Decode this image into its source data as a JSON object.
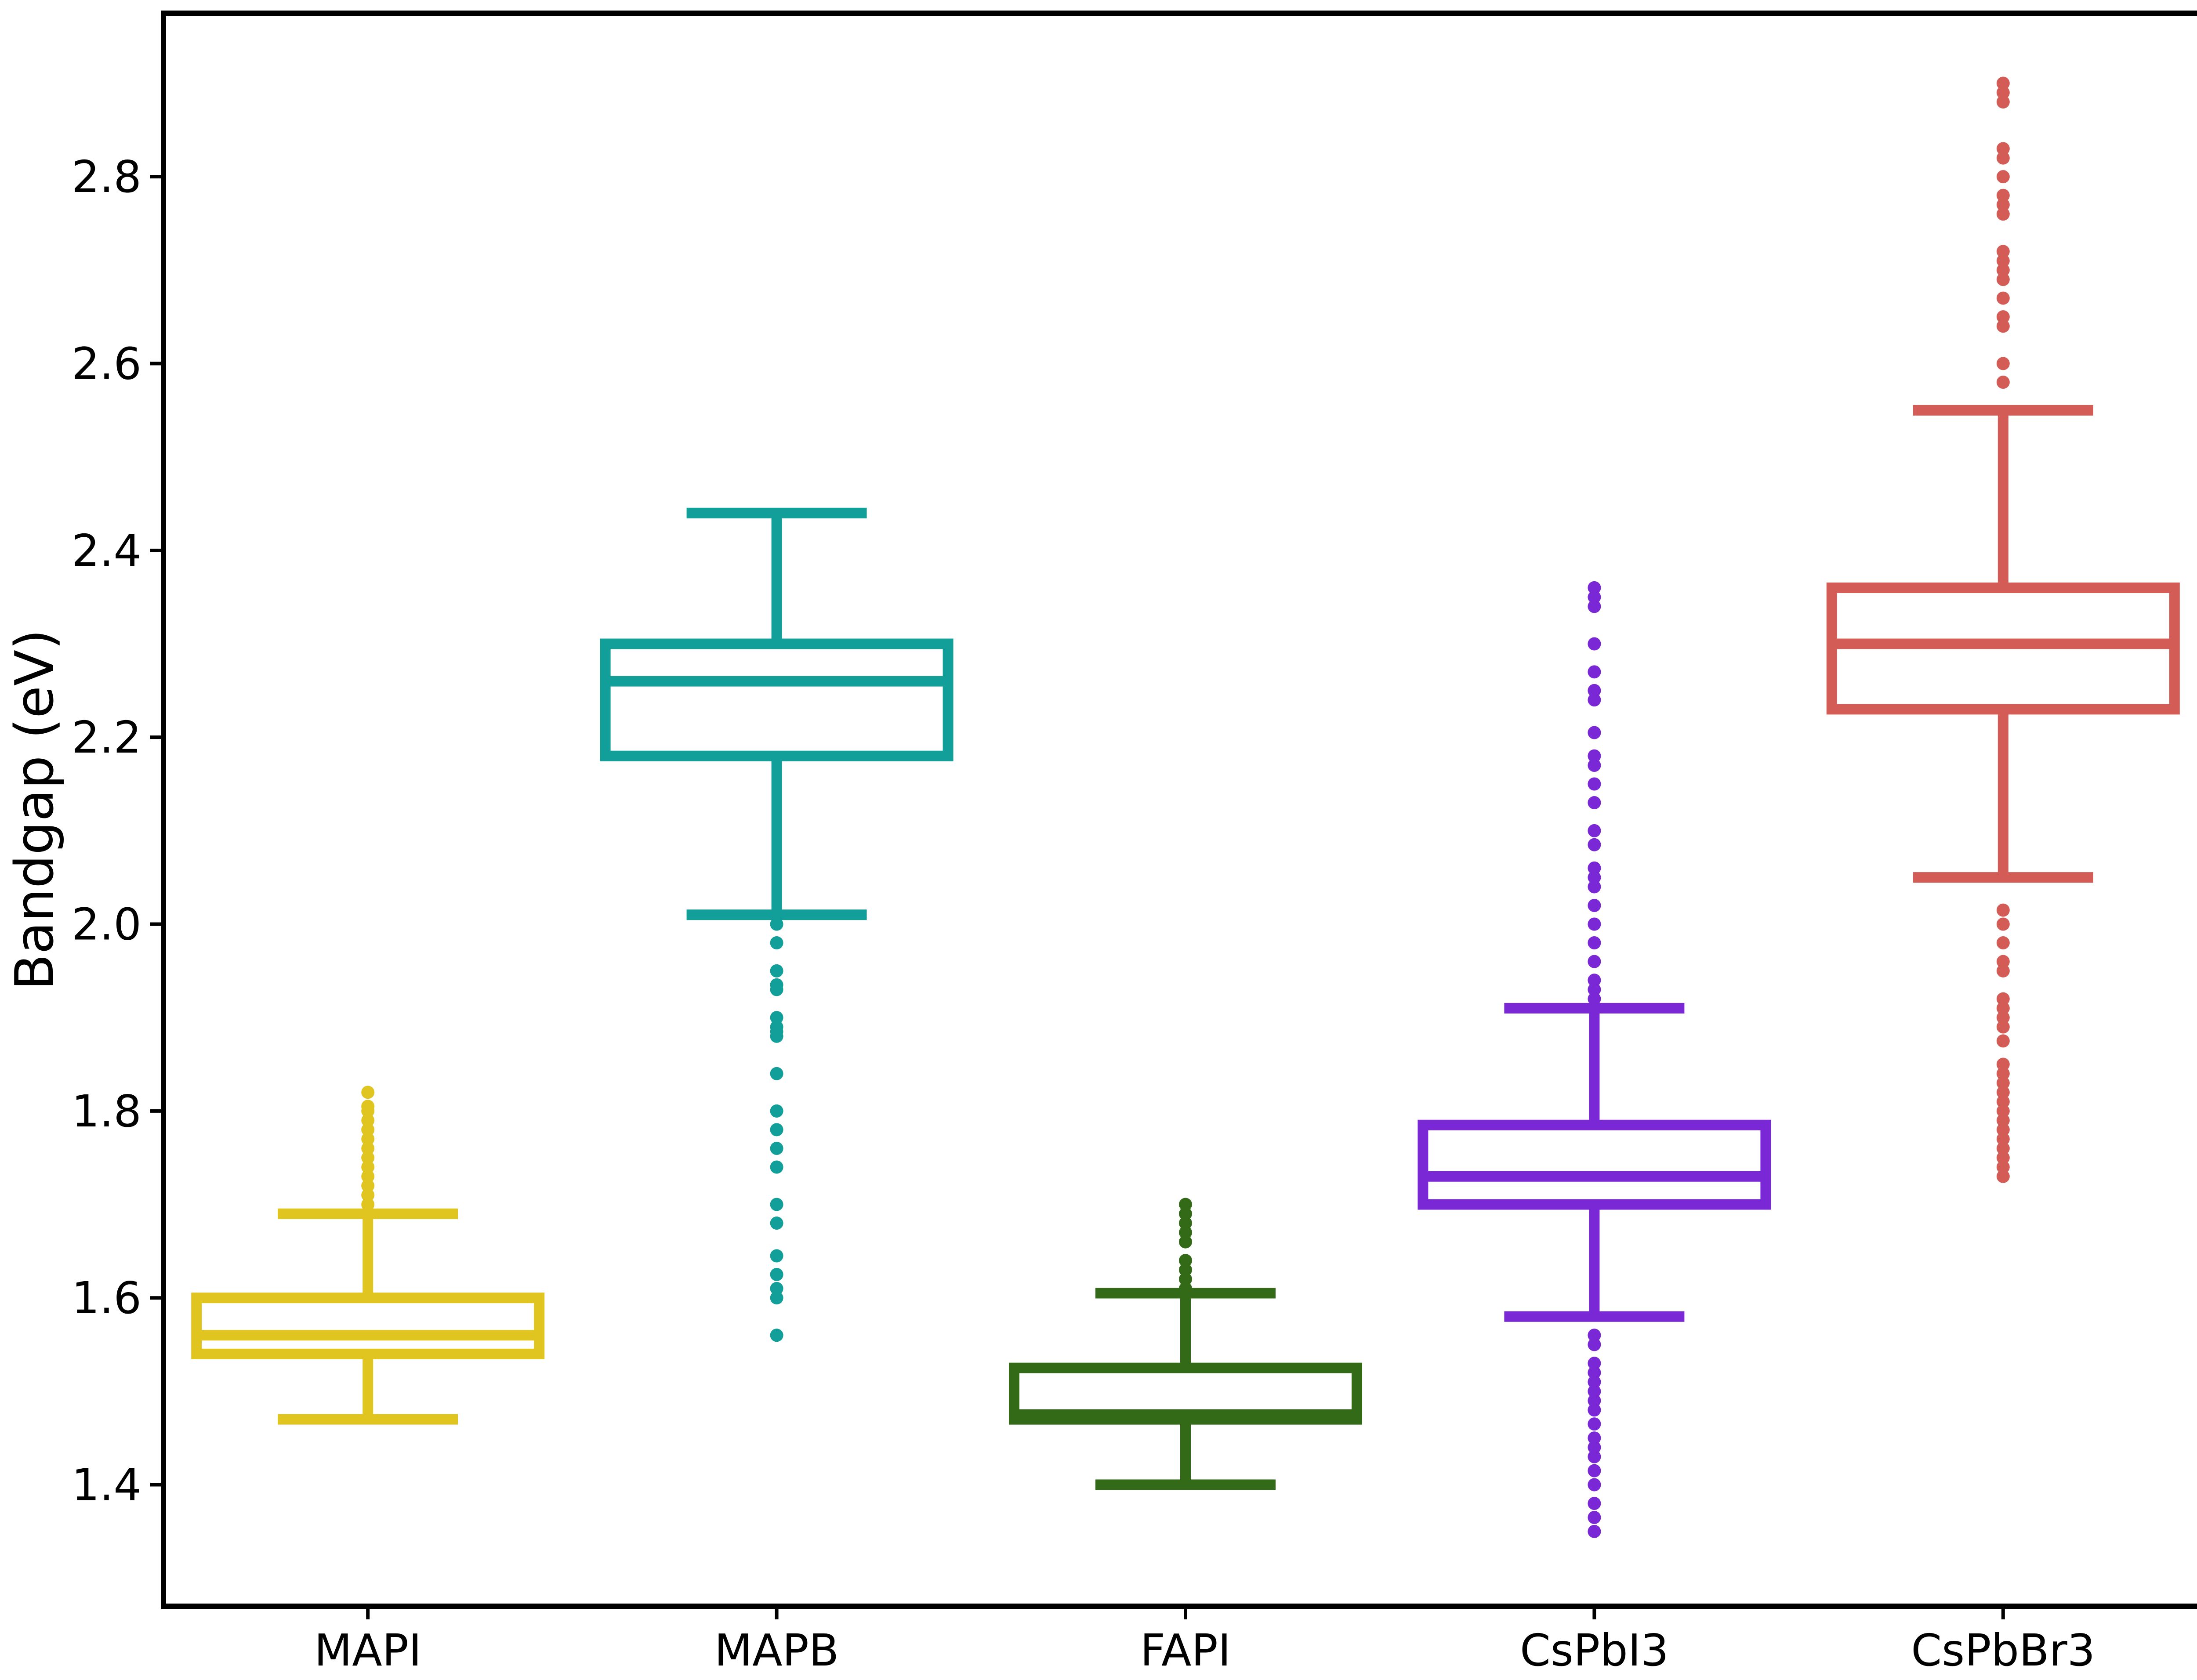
{
  "chart_data": {
    "type": "box",
    "title": "",
    "xlabel": "",
    "ylabel": "Bandgap (eV)",
    "ylim": [
      1.27,
      2.975
    ],
    "yticks": [
      "1.4",
      "1.6",
      "1.8",
      "2.0",
      "2.2",
      "2.4",
      "2.6",
      "2.8"
    ],
    "grid": false,
    "legend": "none",
    "categories": [
      "MAPI",
      "MAPB",
      "FAPI",
      "CsPbI3",
      "CsPbBr3"
    ],
    "series": [
      {
        "name": "MAPI",
        "color": "#e0c420",
        "whisker_low": 1.47,
        "q1": 1.54,
        "median": 1.56,
        "q3": 1.6,
        "whisker_high": 1.69,
        "outliers": [
          1.7,
          1.71,
          1.72,
          1.73,
          1.74,
          1.75,
          1.76,
          1.77,
          1.78,
          1.79,
          1.8,
          1.805,
          1.82
        ]
      },
      {
        "name": "MAPB",
        "color": "#129e99",
        "whisker_low": 2.01,
        "q1": 2.18,
        "median": 2.26,
        "q3": 2.3,
        "whisker_high": 2.44,
        "outliers": [
          1.56,
          1.6,
          1.61,
          1.625,
          1.645,
          1.68,
          1.7,
          1.74,
          1.76,
          1.78,
          1.8,
          1.84,
          1.88,
          1.885,
          1.89,
          1.9,
          1.93,
          1.935,
          1.95,
          1.98,
          2.0
        ]
      },
      {
        "name": "FAPI",
        "color": "#336a18",
        "whisker_low": 1.4,
        "q1": 1.47,
        "median": 1.475,
        "q3": 1.525,
        "whisker_high": 1.605,
        "outliers": [
          1.61,
          1.62,
          1.63,
          1.64,
          1.66,
          1.67,
          1.68,
          1.69,
          1.7
        ]
      },
      {
        "name": "CsPbI3",
        "color": "#7a28d6",
        "whisker_low": 1.58,
        "q1": 1.7,
        "median": 1.73,
        "q3": 1.785,
        "whisker_high": 1.91,
        "outliers": [
          1.35,
          1.365,
          1.38,
          1.4,
          1.415,
          1.43,
          1.44,
          1.45,
          1.465,
          1.48,
          1.49,
          1.5,
          1.51,
          1.52,
          1.53,
          1.55,
          1.56,
          1.92,
          1.93,
          1.94,
          1.96,
          1.98,
          2.0,
          2.02,
          2.04,
          2.05,
          2.06,
          2.085,
          2.1,
          2.13,
          2.15,
          2.17,
          2.18,
          2.205,
          2.24,
          2.25,
          2.27,
          2.3,
          2.34,
          2.35,
          2.36
        ]
      },
      {
        "name": "CsPbBr3",
        "color": "#d45c56",
        "whisker_low": 2.05,
        "q1": 2.23,
        "median": 2.3,
        "q3": 2.36,
        "whisker_high": 2.55,
        "outliers": [
          1.73,
          1.74,
          1.75,
          1.76,
          1.77,
          1.78,
          1.79,
          1.8,
          1.81,
          1.82,
          1.83,
          1.84,
          1.85,
          1.875,
          1.89,
          1.9,
          1.91,
          1.92,
          1.95,
          1.96,
          1.98,
          2.0,
          2.015,
          2.58,
          2.6,
          2.64,
          2.65,
          2.67,
          2.69,
          2.7,
          2.71,
          2.72,
          2.76,
          2.77,
          2.78,
          2.8,
          2.82,
          2.83,
          2.88,
          2.89,
          2.9
        ]
      }
    ]
  }
}
